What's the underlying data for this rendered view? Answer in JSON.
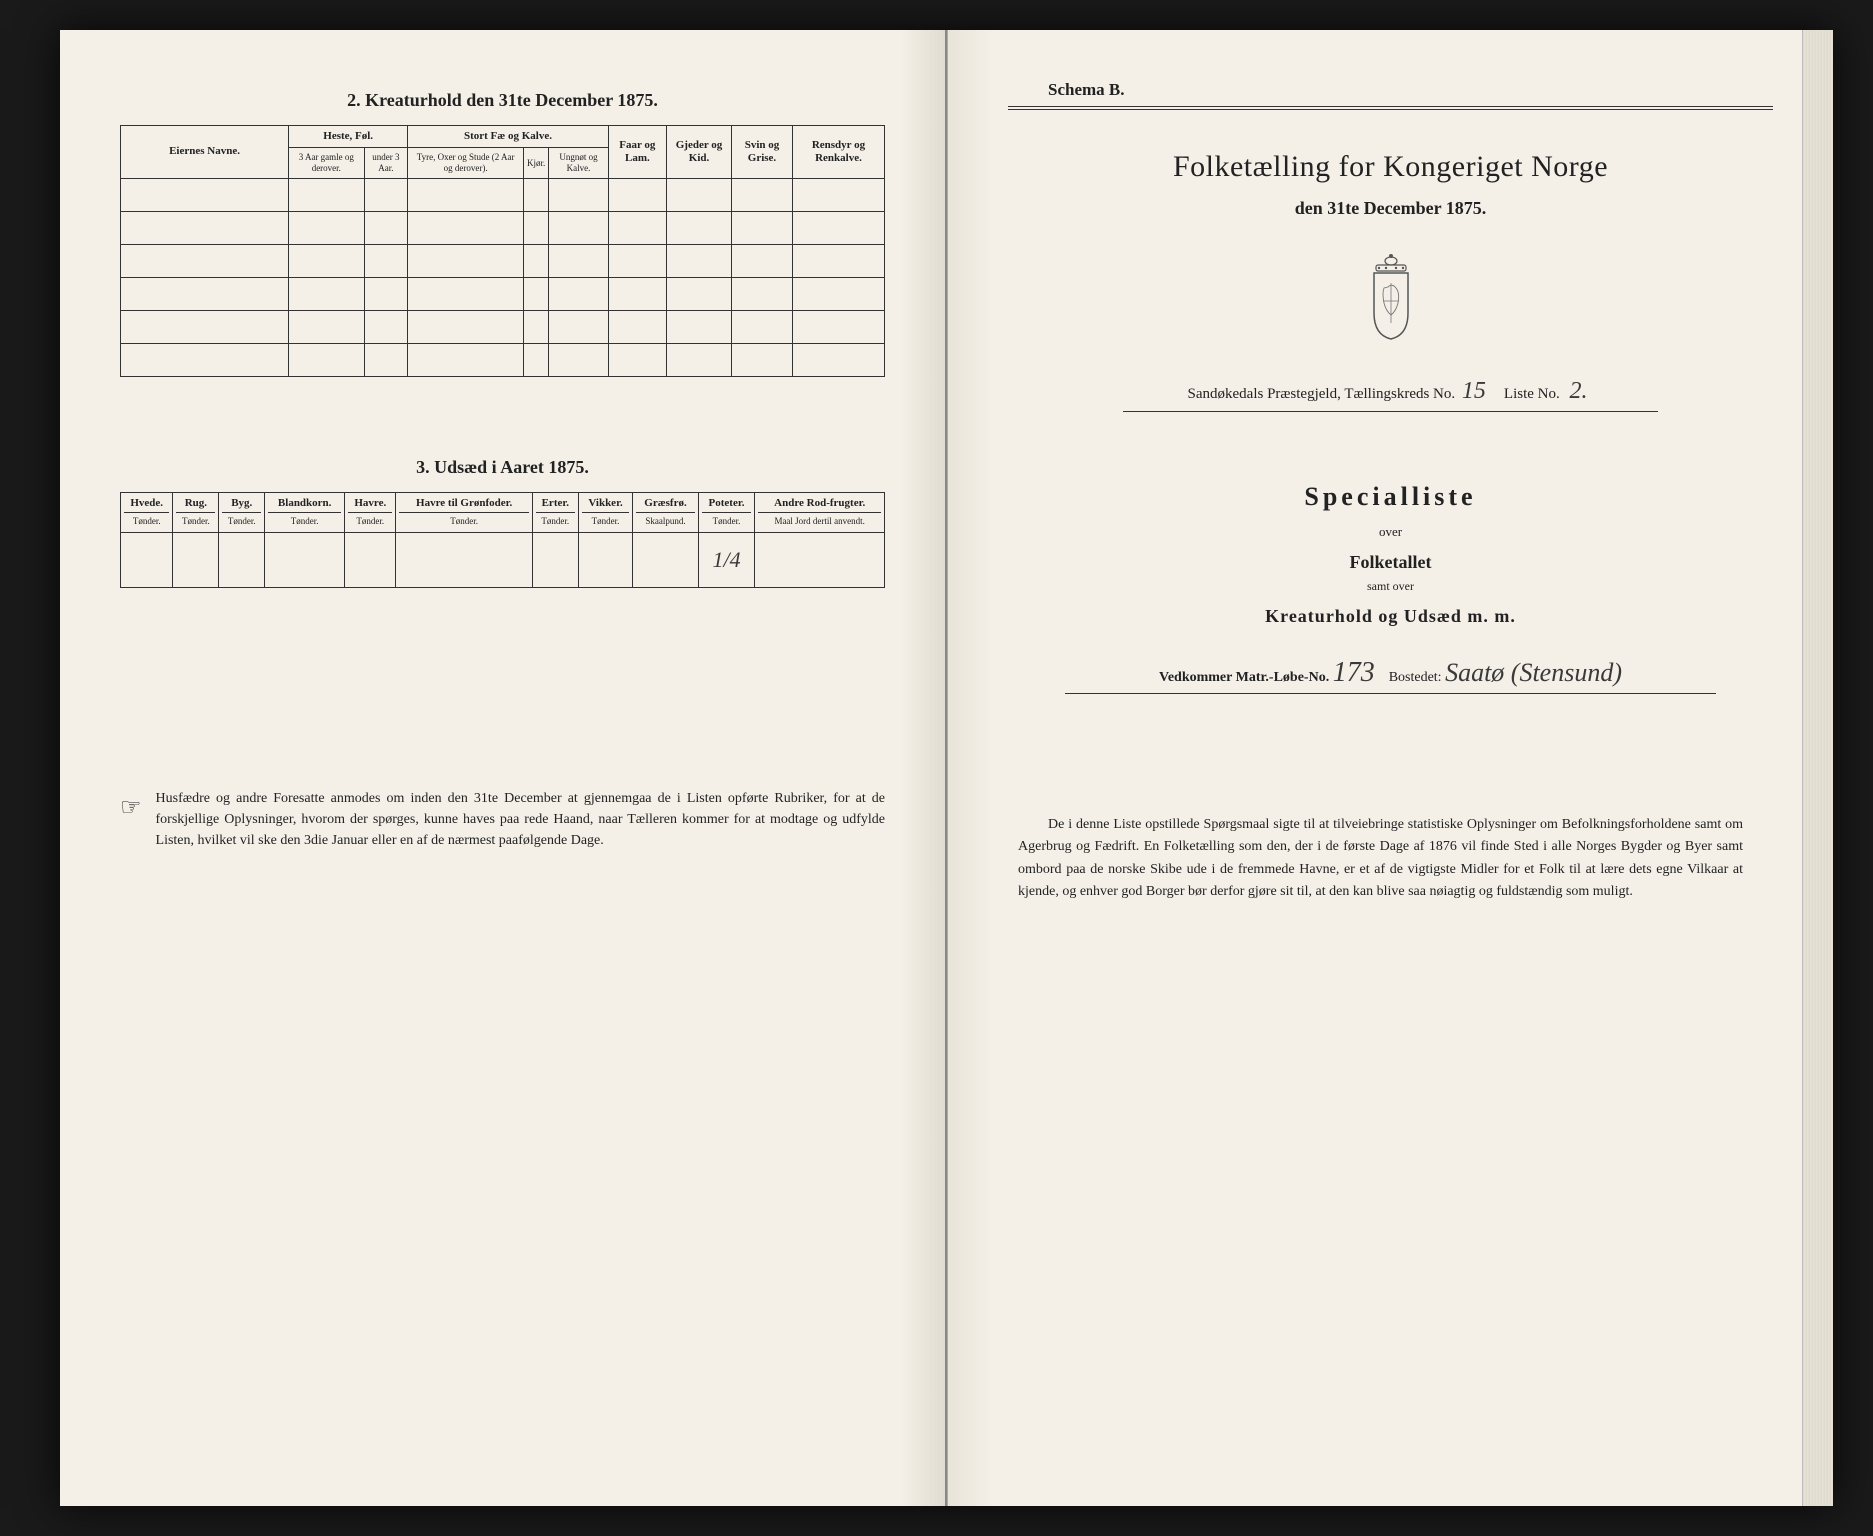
{
  "left": {
    "section2": {
      "title": "2.  Kreaturhold den 31te December 1875.",
      "col_owner": "Eiernes Navne.",
      "group_heste": "Heste, Føl.",
      "group_storfe": "Stort Fæ og Kalve.",
      "col_faar": "Faar og Lam.",
      "col_gjeder": "Gjeder og Kid.",
      "col_svin": "Svin og Grise.",
      "col_rensdyr": "Rensdyr og Renkalve.",
      "heste_a": "3 Aar gamle og derover.",
      "heste_b": "under 3 Aar.",
      "storfe_a": "Tyre, Oxer og Stude (2 Aar og derover).",
      "storfe_b": "Kjør.",
      "storfe_c": "Ungnøt og Kalve.",
      "rows": 6
    },
    "section3": {
      "title": "3.  Udsæd i Aaret 1875.",
      "cols": [
        {
          "h": "Hvede.",
          "s": "Tønder."
        },
        {
          "h": "Rug.",
          "s": "Tønder."
        },
        {
          "h": "Byg.",
          "s": "Tønder."
        },
        {
          "h": "Blandkorn.",
          "s": "Tønder."
        },
        {
          "h": "Havre.",
          "s": "Tønder."
        },
        {
          "h": "Havre til Grønfoder.",
          "s": "Tønder."
        },
        {
          "h": "Erter.",
          "s": "Tønder."
        },
        {
          "h": "Vikker.",
          "s": "Tønder."
        },
        {
          "h": "Græsfrø.",
          "s": "Skaalpund."
        },
        {
          "h": "Poteter.",
          "s": "Tønder."
        },
        {
          "h": "Andre Rod-frugter.",
          "s": "Maal Jord dertil anvendt."
        }
      ],
      "values": [
        "",
        "",
        "",
        "",
        "",
        "",
        "",
        "",
        "",
        "1/4",
        ""
      ]
    },
    "footnote": "Husfædre og andre Foresatte anmodes om inden den 31te December at gjennemgaa de i Listen opførte Rubriker, for at de forskjellige Oplysninger, hvorom der spørges, kunne haves paa rede Haand, naar Tælleren kommer for at modtage og udfylde Listen, hvilket vil ske den 3die Januar eller en af de nærmest paafølgende Dage."
  },
  "right": {
    "schema": "Schema B.",
    "main_title": "Folketælling for Kongeriget Norge",
    "main_sub": "den 31te December 1875.",
    "preste_label_a": "Sandøkedals Præstegjeld, Tællingskreds No.",
    "preste_val_a": "15",
    "preste_label_b": "Liste No.",
    "preste_val_b": "2.",
    "special_title": "Specialliste",
    "special_over": "over",
    "special_folk": "Folketallet",
    "special_samt": "samt over",
    "special_kreat": "Kreaturhold og Udsæd m. m.",
    "matr_label_a": "Vedkommer Matr.-Løbe-No.",
    "matr_val_a": "173",
    "matr_label_b": "Bostedet:",
    "matr_val_b": "Saatø (Stensund)",
    "footnote": "De i denne Liste opstillede Spørgsmaal sigte til at tilveiebringe statistiske Oplysninger om Befolkningsforholdene samt om Agerbrug og Fædrift.   En Folketælling som den, der i de første Dage af 1876 vil finde Sted i alle Norges Bygder og Byer samt ombord paa de norske Skibe ude i de fremmede Havne, er et af de vigtigste Midler for et Folk til at lære dets egne Vilkaar at kjende, og enhver god Borger bør derfor gjøre sit til, at den kan blive saa nøiagtig og fuldstændig som muligt."
  }
}
